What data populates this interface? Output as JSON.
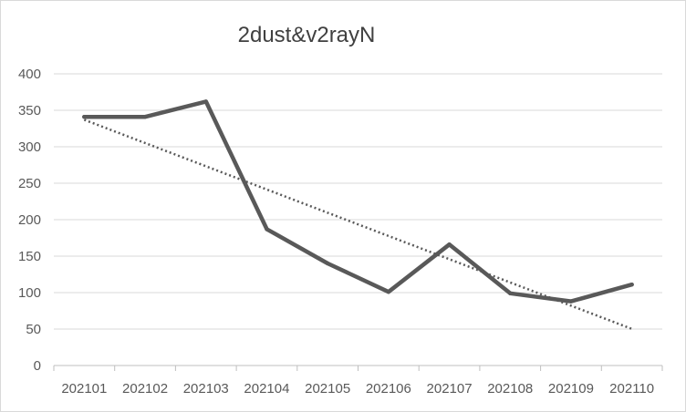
{
  "chart_data": {
    "type": "line",
    "title": "2dust&v2rayN",
    "xlabel": "",
    "ylabel": "",
    "categories": [
      "202101",
      "202102",
      "202103",
      "202104",
      "202105",
      "202106",
      "202107",
      "202108",
      "202109",
      "202110"
    ],
    "series": [
      {
        "values": [
          341,
          341,
          362,
          187,
          140,
          101,
          166,
          99,
          88,
          111
        ],
        "color": "#595959"
      }
    ],
    "trendline": {
      "type": "linear",
      "style": "dotted",
      "color": "#595959"
    },
    "ylim": [
      0,
      400
    ],
    "yticks": [
      0,
      50,
      100,
      150,
      200,
      250,
      300,
      350,
      400
    ],
    "grid": true,
    "legend": "none"
  }
}
